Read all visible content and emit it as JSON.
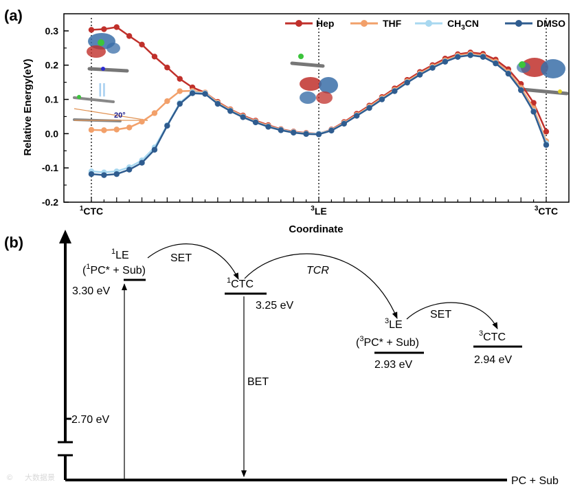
{
  "panel_a_label": "(a)",
  "panel_b_label": "(b)",
  "chart_data": {
    "type": "line",
    "xlabel": "Coordinate",
    "ylabel": "Relative Energy(eV)",
    "ylim": [
      -0.2,
      0.35
    ],
    "yticks": [
      "-0.2",
      "-0.1",
      "0.0",
      "0.1",
      "0.2",
      "0.3"
    ],
    "x_range": [
      0,
      36
    ],
    "x_points": [
      0,
      1,
      2,
      3,
      4,
      5,
      6,
      7,
      8,
      9,
      10,
      11,
      12,
      13,
      14,
      15,
      16,
      17,
      18,
      19,
      20,
      21,
      22,
      23,
      24,
      25,
      26,
      27,
      28,
      29,
      30,
      31,
      32,
      33,
      34,
      35,
      36
    ],
    "xtick_labels": [
      {
        "pos": 0,
        "sup": "1",
        "text": "CTC"
      },
      {
        "pos": 18,
        "sup": "3",
        "text": "LE"
      },
      {
        "pos": 36,
        "sup": "3",
        "text": "CTC"
      }
    ],
    "legend_position": "top-right",
    "series": [
      {
        "name": "Hep",
        "color": "#c0302b",
        "values": [
          0.303,
          0.305,
          0.311,
          0.285,
          0.26,
          0.225,
          0.193,
          0.16,
          0.135,
          0.12,
          0.093,
          0.071,
          0.053,
          0.038,
          0.025,
          0.013,
          0.006,
          0.002,
          0.0,
          0.012,
          0.034,
          0.058,
          0.082,
          0.107,
          0.132,
          0.157,
          0.18,
          0.2,
          0.219,
          0.232,
          0.237,
          0.233,
          0.216,
          0.188,
          0.145,
          0.09,
          0.006
        ]
      },
      {
        "name": "THF",
        "color": "#f2a06a",
        "values": [
          0.011,
          0.01,
          0.012,
          0.018,
          0.035,
          0.06,
          0.095,
          0.124,
          0.125,
          0.12,
          0.091,
          0.07,
          0.051,
          0.036,
          0.023,
          0.012,
          0.005,
          0.001,
          0.0,
          0.011,
          0.032,
          0.055,
          0.079,
          0.104,
          0.128,
          0.153,
          0.176,
          0.196,
          0.214,
          0.228,
          0.233,
          0.228,
          0.21,
          0.18,
          0.134,
          0.074,
          -0.022
        ]
      },
      {
        "name": "CH3CN",
        "color": "#a8d8f0",
        "values": [
          -0.11,
          -0.113,
          -0.11,
          -0.098,
          -0.078,
          -0.04,
          0.025,
          0.09,
          0.121,
          0.118,
          0.088,
          0.067,
          0.049,
          0.034,
          0.021,
          0.011,
          0.004,
          0.0,
          0.0,
          0.01,
          0.03,
          0.053,
          0.076,
          0.101,
          0.125,
          0.15,
          0.173,
          0.193,
          0.211,
          0.225,
          0.23,
          0.225,
          0.206,
          0.176,
          0.128,
          0.066,
          -0.028
        ]
      },
      {
        "name": "DMSO",
        "color": "#2f5c8f",
        "values": [
          -0.118,
          -0.121,
          -0.118,
          -0.105,
          -0.085,
          -0.047,
          0.023,
          0.087,
          0.118,
          0.116,
          0.087,
          0.066,
          0.048,
          0.033,
          0.02,
          0.01,
          0.003,
          -0.001,
          -0.002,
          0.009,
          0.029,
          0.052,
          0.075,
          0.1,
          0.124,
          0.149,
          0.172,
          0.192,
          0.21,
          0.224,
          0.229,
          0.224,
          0.205,
          0.175,
          0.127,
          0.064,
          -0.033
        ]
      }
    ],
    "legend_subscript": {
      "series": "CH3CN",
      "base1": "CH",
      "sub": "3",
      "base2": "CN"
    },
    "annotation_angle": "20°",
    "annotation_parallel": "||"
  },
  "diagram": {
    "states": [
      {
        "key": "le1",
        "sup": "1",
        "name": "LE",
        "desc_pre": "(",
        "desc_sup": "1",
        "desc_post": "PC* + Sub)",
        "energy": "3.30 eV"
      },
      {
        "key": "ctc1",
        "sup": "1",
        "name": "CTC",
        "energy": "3.25 eV"
      },
      {
        "key": "le3",
        "sup": "3",
        "name": "LE",
        "desc_pre": "(",
        "desc_sup": "3",
        "desc_post": "PC* + Sub)",
        "energy": "2.93 eV"
      },
      {
        "key": "ctc3",
        "sup": "3",
        "name": "CTC",
        "energy": "2.94 eV"
      }
    ],
    "arrows": {
      "set1": "SET",
      "tcr": "TCR",
      "set2": "SET",
      "bet": "BET"
    },
    "axis_mark": "2.70 eV",
    "ground": "PC + Sub"
  },
  "watermark": "大数据景"
}
